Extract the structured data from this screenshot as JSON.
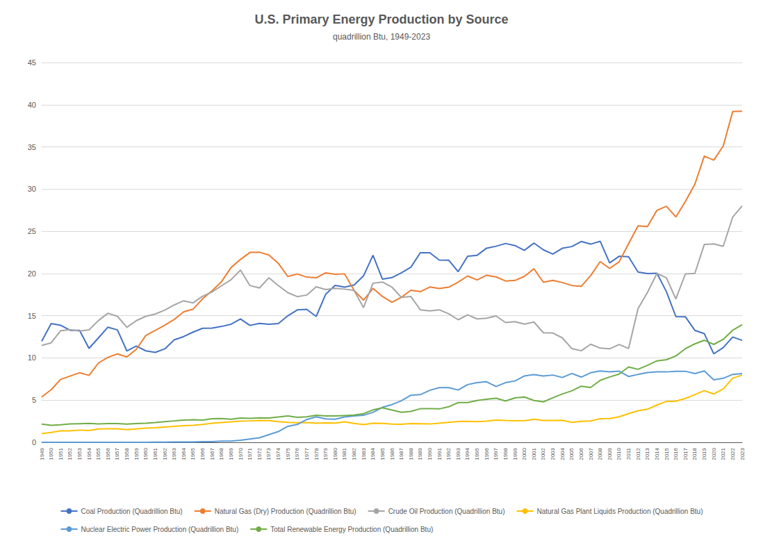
{
  "chart_data": {
    "type": "line",
    "title": "U.S. Primary Energy Production by Source",
    "subtitle": "quadrillion Btu, 1949-2023",
    "x": [
      1949,
      1950,
      1951,
      1952,
      1953,
      1954,
      1955,
      1956,
      1957,
      1958,
      1959,
      1960,
      1961,
      1962,
      1963,
      1964,
      1965,
      1966,
      1967,
      1968,
      1969,
      1970,
      1971,
      1972,
      1973,
      1974,
      1975,
      1976,
      1977,
      1978,
      1979,
      1980,
      1981,
      1982,
      1983,
      1984,
      1985,
      1986,
      1987,
      1988,
      1989,
      1990,
      1991,
      1992,
      1993,
      1994,
      1995,
      1996,
      1997,
      1998,
      1999,
      2000,
      2001,
      2002,
      2003,
      2004,
      2005,
      2006,
      2007,
      2008,
      2009,
      2010,
      2011,
      2012,
      2013,
      2014,
      2015,
      2016,
      2017,
      2018,
      2019,
      2020,
      2021,
      2022,
      2023
    ],
    "series": [
      {
        "name": "Coal Production (Quadrillion Btu)",
        "color": "#4472c4",
        "values": [
          11.97,
          14.06,
          13.87,
          13.27,
          13.27,
          11.13,
          12.38,
          13.64,
          13.32,
          10.82,
          11.4,
          10.84,
          10.65,
          11.07,
          12.13,
          12.53,
          13.06,
          13.51,
          13.53,
          13.73,
          13.99,
          14.61,
          13.85,
          14.09,
          13.99,
          14.07,
          14.99,
          15.69,
          15.75,
          14.91,
          17.54,
          18.6,
          18.38,
          18.63,
          19.72,
          22.16,
          19.33,
          19.51,
          20.09,
          20.74,
          22.46,
          22.46,
          21.59,
          21.58,
          20.21,
          22.05,
          22.16,
          23.0,
          23.23,
          23.56,
          23.31,
          22.74,
          23.61,
          22.81,
          22.31,
          22.99,
          23.19,
          23.79,
          23.48,
          23.82,
          21.26,
          22.04,
          21.99,
          20.18,
          19.99,
          20.03,
          17.84,
          14.89,
          14.88,
          13.27,
          12.88,
          10.49,
          11.22,
          12.47,
          12.08
        ]
      },
      {
        "name": "Natural Gas (Dry) Production (Quadrillion Btu)",
        "color": "#ed7d31",
        "values": [
          5.37,
          6.23,
          7.46,
          7.85,
          8.24,
          7.93,
          9.4,
          10.07,
          10.47,
          10.12,
          11.02,
          12.66,
          13.25,
          13.88,
          14.55,
          15.46,
          15.78,
          17.0,
          17.95,
          19.03,
          20.7,
          21.67,
          22.49,
          22.53,
          22.19,
          21.21,
          19.64,
          19.94,
          19.57,
          19.49,
          20.08,
          19.91,
          19.96,
          18.01,
          16.84,
          18.24,
          17.28,
          16.59,
          17.19,
          18.02,
          17.85,
          18.4,
          18.23,
          18.38,
          18.97,
          19.7,
          19.24,
          19.79,
          19.6,
          19.11,
          19.18,
          19.66,
          20.57,
          18.96,
          19.19,
          18.93,
          18.58,
          18.48,
          19.75,
          21.41,
          20.61,
          21.38,
          23.53,
          25.65,
          25.57,
          27.49,
          27.96,
          26.7,
          28.52,
          30.56,
          33.9,
          33.43,
          35.11,
          39.19,
          39.22
        ]
      },
      {
        "name": "Crude Oil Production (Quadrillion Btu)",
        "color": "#a5a5a5",
        "values": [
          11.48,
          11.79,
          13.22,
          13.35,
          13.19,
          13.33,
          14.43,
          15.29,
          14.93,
          13.63,
          14.42,
          14.93,
          15.2,
          15.66,
          16.27,
          16.77,
          16.52,
          17.31,
          17.81,
          18.55,
          19.26,
          20.4,
          18.58,
          18.28,
          19.49,
          18.57,
          17.73,
          17.26,
          17.45,
          18.43,
          18.1,
          18.25,
          18.15,
          18.0,
          15.96,
          18.85,
          18.99,
          18.39,
          17.17,
          17.28,
          15.7,
          15.57,
          15.7,
          15.23,
          14.52,
          15.11,
          14.62,
          14.71,
          14.97,
          14.19,
          14.29,
          14.0,
          14.25,
          12.98,
          12.95,
          12.38,
          11.11,
          10.85,
          11.62,
          11.16,
          11.08,
          11.59,
          11.11,
          15.83,
          17.77,
          20.01,
          19.49,
          16.99,
          19.95,
          20.01,
          23.44,
          23.51,
          23.22,
          26.68,
          28.0
        ]
      },
      {
        "name": "Natural Gas Plant Liquids Production (Quadrillion Btu)",
        "color": "#ffc000",
        "values": [
          1.03,
          1.17,
          1.35,
          1.35,
          1.45,
          1.39,
          1.59,
          1.61,
          1.61,
          1.51,
          1.59,
          1.68,
          1.73,
          1.81,
          1.89,
          1.97,
          2.02,
          2.12,
          2.26,
          2.35,
          2.42,
          2.51,
          2.54,
          2.6,
          2.57,
          2.44,
          2.37,
          2.32,
          2.35,
          2.26,
          2.3,
          2.28,
          2.42,
          2.24,
          2.09,
          2.27,
          2.24,
          2.16,
          2.13,
          2.22,
          2.2,
          2.17,
          2.27,
          2.37,
          2.46,
          2.48,
          2.44,
          2.5,
          2.63,
          2.59,
          2.56,
          2.58,
          2.73,
          2.59,
          2.59,
          2.62,
          2.36,
          2.49,
          2.53,
          2.8,
          2.81,
          3.02,
          3.39,
          3.74,
          3.92,
          4.42,
          4.84,
          4.87,
          5.2,
          5.64,
          6.12,
          5.72,
          6.32,
          7.6,
          7.97
        ]
      },
      {
        "name": "Nuclear Electric Power Production (Quadrillion Btu)",
        "color": "#5b9bd5",
        "values": [
          0.0,
          0.0,
          0.0,
          0.0,
          0.0,
          0.0,
          0.0,
          0.0,
          0.0,
          0.0,
          0.0,
          0.01,
          0.02,
          0.03,
          0.04,
          0.04,
          0.04,
          0.09,
          0.09,
          0.14,
          0.15,
          0.24,
          0.4,
          0.54,
          0.91,
          1.27,
          1.9,
          2.11,
          2.7,
          3.02,
          2.78,
          2.74,
          3.01,
          3.13,
          3.2,
          3.55,
          4.15,
          4.47,
          4.92,
          5.58,
          5.65,
          6.16,
          6.48,
          6.48,
          6.2,
          6.84,
          7.08,
          7.17,
          6.61,
          7.07,
          7.27,
          7.86,
          8.03,
          7.85,
          7.97,
          7.68,
          8.16,
          7.73,
          8.24,
          8.45,
          8.35,
          8.43,
          7.8,
          8.05,
          8.27,
          8.34,
          8.34,
          8.42,
          8.42,
          8.14,
          8.45,
          7.41,
          7.58,
          8.05,
          8.15
        ]
      },
      {
        "name": "Total Renewable Energy Production (Quadrillion Btu)",
        "color": "#70ad47",
        "values": [
          2.15,
          2.01,
          2.07,
          2.18,
          2.21,
          2.24,
          2.19,
          2.22,
          2.22,
          2.16,
          2.22,
          2.26,
          2.34,
          2.44,
          2.54,
          2.64,
          2.68,
          2.63,
          2.79,
          2.82,
          2.74,
          2.88,
          2.84,
          2.89,
          2.88,
          3.0,
          3.13,
          2.96,
          3.03,
          3.21,
          3.13,
          3.12,
          3.17,
          3.22,
          3.39,
          3.84,
          4.1,
          3.82,
          3.56,
          3.66,
          3.98,
          4.0,
          3.96,
          4.21,
          4.71,
          4.71,
          4.96,
          5.11,
          5.23,
          4.9,
          5.26,
          5.37,
          4.96,
          4.79,
          5.27,
          5.73,
          6.1,
          6.65,
          6.5,
          7.34,
          7.74,
          8.08,
          8.93,
          8.65,
          9.12,
          9.65,
          9.79,
          10.23,
          11.09,
          11.66,
          12.09,
          11.6,
          12.2,
          13.28,
          13.94
        ]
      }
    ],
    "xlim": [
      1949,
      2023
    ],
    "xticks": [
      1949,
      1950,
      1951,
      1952,
      1953,
      1954,
      1955,
      1956,
      1957,
      1958,
      1959,
      1960,
      1961,
      1962,
      1963,
      1964,
      1965,
      1966,
      1967,
      1968,
      1969,
      1970,
      1971,
      1972,
      1973,
      1974,
      1975,
      1976,
      1977,
      1978,
      1979,
      1980,
      1981,
      1982,
      1983,
      1984,
      1985,
      1986,
      1987,
      1988,
      1989,
      1990,
      1991,
      1992,
      1993,
      1994,
      1995,
      1996,
      1997,
      1998,
      1999,
      2000,
      2001,
      2002,
      2003,
      2004,
      2005,
      2006,
      2007,
      2008,
      2009,
      2010,
      2011,
      2012,
      2013,
      2014,
      2015,
      2016,
      2017,
      2018,
      2019,
      2020,
      2021,
      2022,
      2023
    ],
    "ylim": [
      0,
      45
    ],
    "yticks": [
      0,
      5,
      10,
      15,
      20,
      25,
      30,
      35,
      40,
      45
    ],
    "grid": true,
    "legend": "bottom"
  }
}
